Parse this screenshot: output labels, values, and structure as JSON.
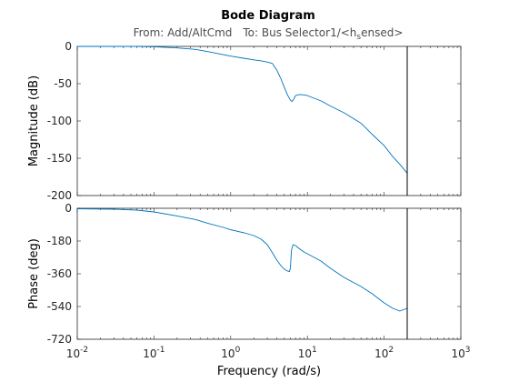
{
  "chart_data": {
    "type": "line",
    "title": "Bode Diagram",
    "subtitle_from": "From: Add/AltCmd",
    "subtitle_to_prefix": "To: Bus Selector1/<h",
    "subtitle_to_sub": "s",
    "subtitle_to_suffix": "ensed>",
    "xlabel": "Frequency  (rad/s)",
    "xscale": "log",
    "xlim": [
      0.01,
      1000
    ],
    "x_tick_labels": [
      {
        "base": "10",
        "exp": "-2"
      },
      {
        "base": "10",
        "exp": "-1"
      },
      {
        "base": "10",
        "exp": "0"
      },
      {
        "base": "10",
        "exp": "1"
      },
      {
        "base": "10",
        "exp": "2"
      },
      {
        "base": "10",
        "exp": "3"
      }
    ],
    "marker_frequency": 200,
    "line_color": "#0072bd",
    "magnitude": {
      "ylabel": "Magnitude (dB)",
      "ylim": [
        -200,
        0
      ],
      "yticks": [
        "0",
        "-50",
        "-100",
        "-150",
        "-200"
      ],
      "x": [
        0.01,
        0.03,
        0.06,
        0.1,
        0.2,
        0.35,
        0.5,
        0.8,
        1.0,
        1.5,
        2.0,
        2.5,
        3.0,
        3.5,
        4.0,
        4.5,
        5.0,
        5.5,
        6.0,
        6.3,
        6.7,
        7.0,
        7.5,
        8.0,
        9.0,
        10,
        15,
        20,
        30,
        50,
        70,
        100,
        130,
        160,
        200
      ],
      "y": [
        0,
        0,
        0,
        -0.5,
        -2,
        -4,
        -7,
        -11,
        -13,
        -16,
        -18,
        -19.5,
        -21,
        -23,
        -32,
        -43,
        -55,
        -65,
        -72,
        -74,
        -70,
        -66,
        -65,
        -64.5,
        -65,
        -66,
        -73,
        -80,
        -89,
        -103,
        -118,
        -133,
        -148,
        -158,
        -170
      ]
    },
    "phase": {
      "ylabel": "Phase (deg)",
      "ylim": [
        -720,
        0
      ],
      "yticks": [
        "0",
        "-180",
        "-360",
        "-540",
        "-720"
      ],
      "x": [
        0.01,
        0.03,
        0.06,
        0.1,
        0.2,
        0.35,
        0.5,
        0.8,
        1.0,
        1.5,
        2.0,
        2.5,
        3.0,
        3.5,
        4.0,
        4.5,
        5.0,
        5.5,
        5.8,
        6.0,
        6.2,
        6.5,
        7.0,
        8.0,
        9.0,
        10,
        15,
        20,
        30,
        50,
        70,
        100,
        130,
        160,
        200
      ],
      "y": [
        -3,
        -5,
        -10,
        -20,
        -42,
        -62,
        -82,
        -105,
        -118,
        -135,
        -150,
        -170,
        -200,
        -245,
        -285,
        -315,
        -335,
        -345,
        -348,
        -330,
        -230,
        -200,
        -205,
        -225,
        -240,
        -250,
        -290,
        -330,
        -380,
        -430,
        -470,
        -520,
        -550,
        -565,
        -550
      ]
    }
  }
}
